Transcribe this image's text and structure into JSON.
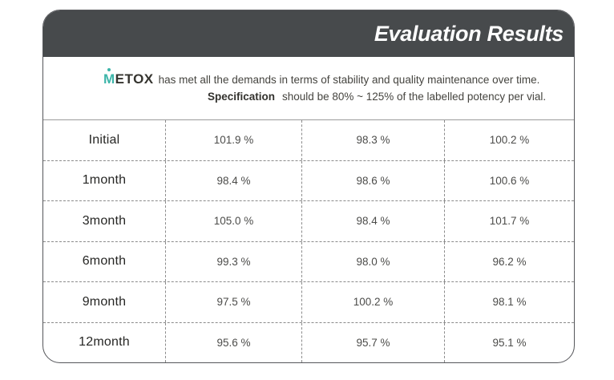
{
  "header": {
    "title": "Evaluation Results"
  },
  "intro": {
    "brand_m": "M",
    "brand_rest": "ETOX",
    "sentence1": "has met all the demands in terms of stability and quality maintenance over time.",
    "spec_label": "Specification",
    "sentence2": "should be 80% ~ 125% of the labelled potency per vial."
  },
  "table": {
    "rows": [
      {
        "label": "Initial",
        "values": [
          "101.9 %",
          "98.3 %",
          "100.2 %"
        ]
      },
      {
        "label": "1month",
        "values": [
          "98.4 %",
          "98.6 %",
          "100.6 %"
        ]
      },
      {
        "label": "3month",
        "values": [
          "105.0 %",
          "98.4 %",
          "101.7 %"
        ]
      },
      {
        "label": "6month",
        "values": [
          "99.3 %",
          "98.0 %",
          "96.2 %"
        ]
      },
      {
        "label": "9month",
        "values": [
          "97.5 %",
          "100.2 %",
          "98.1 %"
        ]
      },
      {
        "label": "12month",
        "values": [
          "95.6 %",
          "95.7 %",
          "95.1 %"
        ]
      }
    ]
  },
  "colors": {
    "header_bg": "#474a4c",
    "brand_teal": "#3cb5a9",
    "title_text": "#ffffff",
    "border_gray": "#8b8b8b"
  }
}
